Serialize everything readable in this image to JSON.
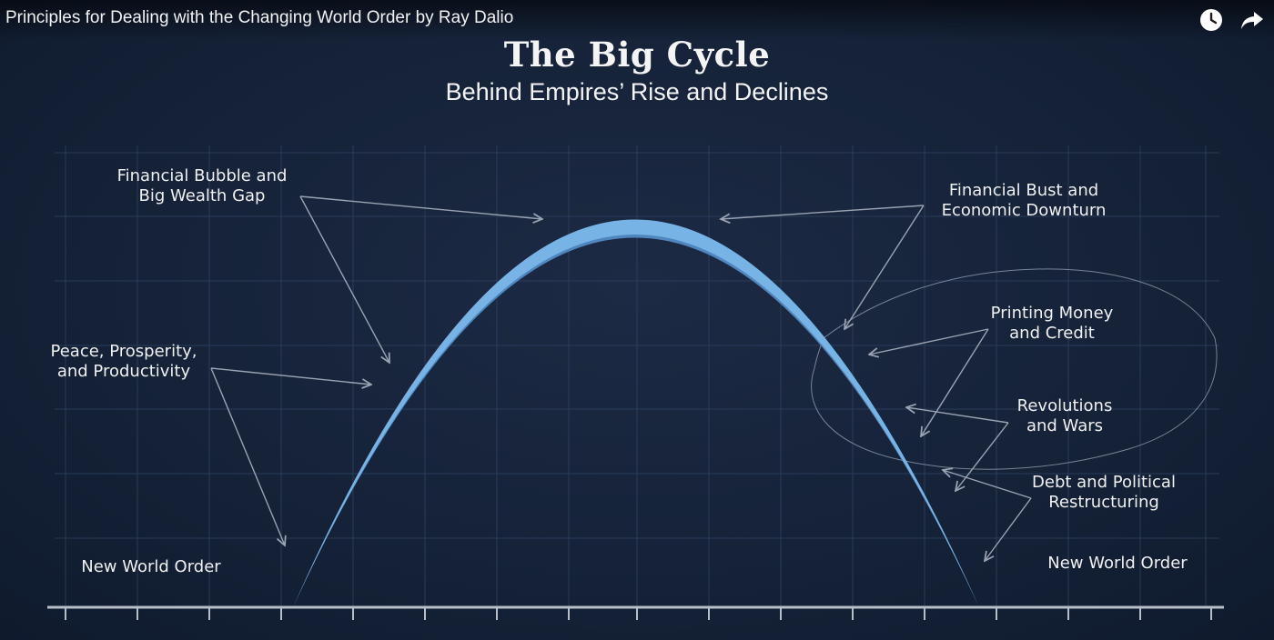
{
  "video": {
    "title": "Principles for Dealing with the Changing World Order by Ray Dalio"
  },
  "icons": {
    "watch_later": "clock-icon",
    "share": "share-arrow-icon"
  },
  "diagram": {
    "title": "The Big Cycle",
    "subtitle": "Behind Empires’ Rise and Declines",
    "labels": {
      "bubble_line1": "Financial Bubble and",
      "bubble_line2": "Big Wealth Gap",
      "bust_line1": "Financial Bust and",
      "bust_line2": "Economic Downturn",
      "peace_line1": "Peace, Prosperity,",
      "peace_line2": "and Productivity",
      "printing_line1": "Printing Money",
      "printing_line2": "and Credit",
      "revolutions_line1": "Revolutions",
      "revolutions_line2": "and Wars",
      "debt_line1": "Debt and Political",
      "debt_line2": "Restructuring",
      "left_order": "New World Order",
      "right_order": "New World Order"
    },
    "colors": {
      "curve": "#78b3e6",
      "curve_shade": "#4f86bd",
      "grid": "#2e4160",
      "arrow": "#9aa3b2",
      "axis": "#b8bec8"
    }
  }
}
